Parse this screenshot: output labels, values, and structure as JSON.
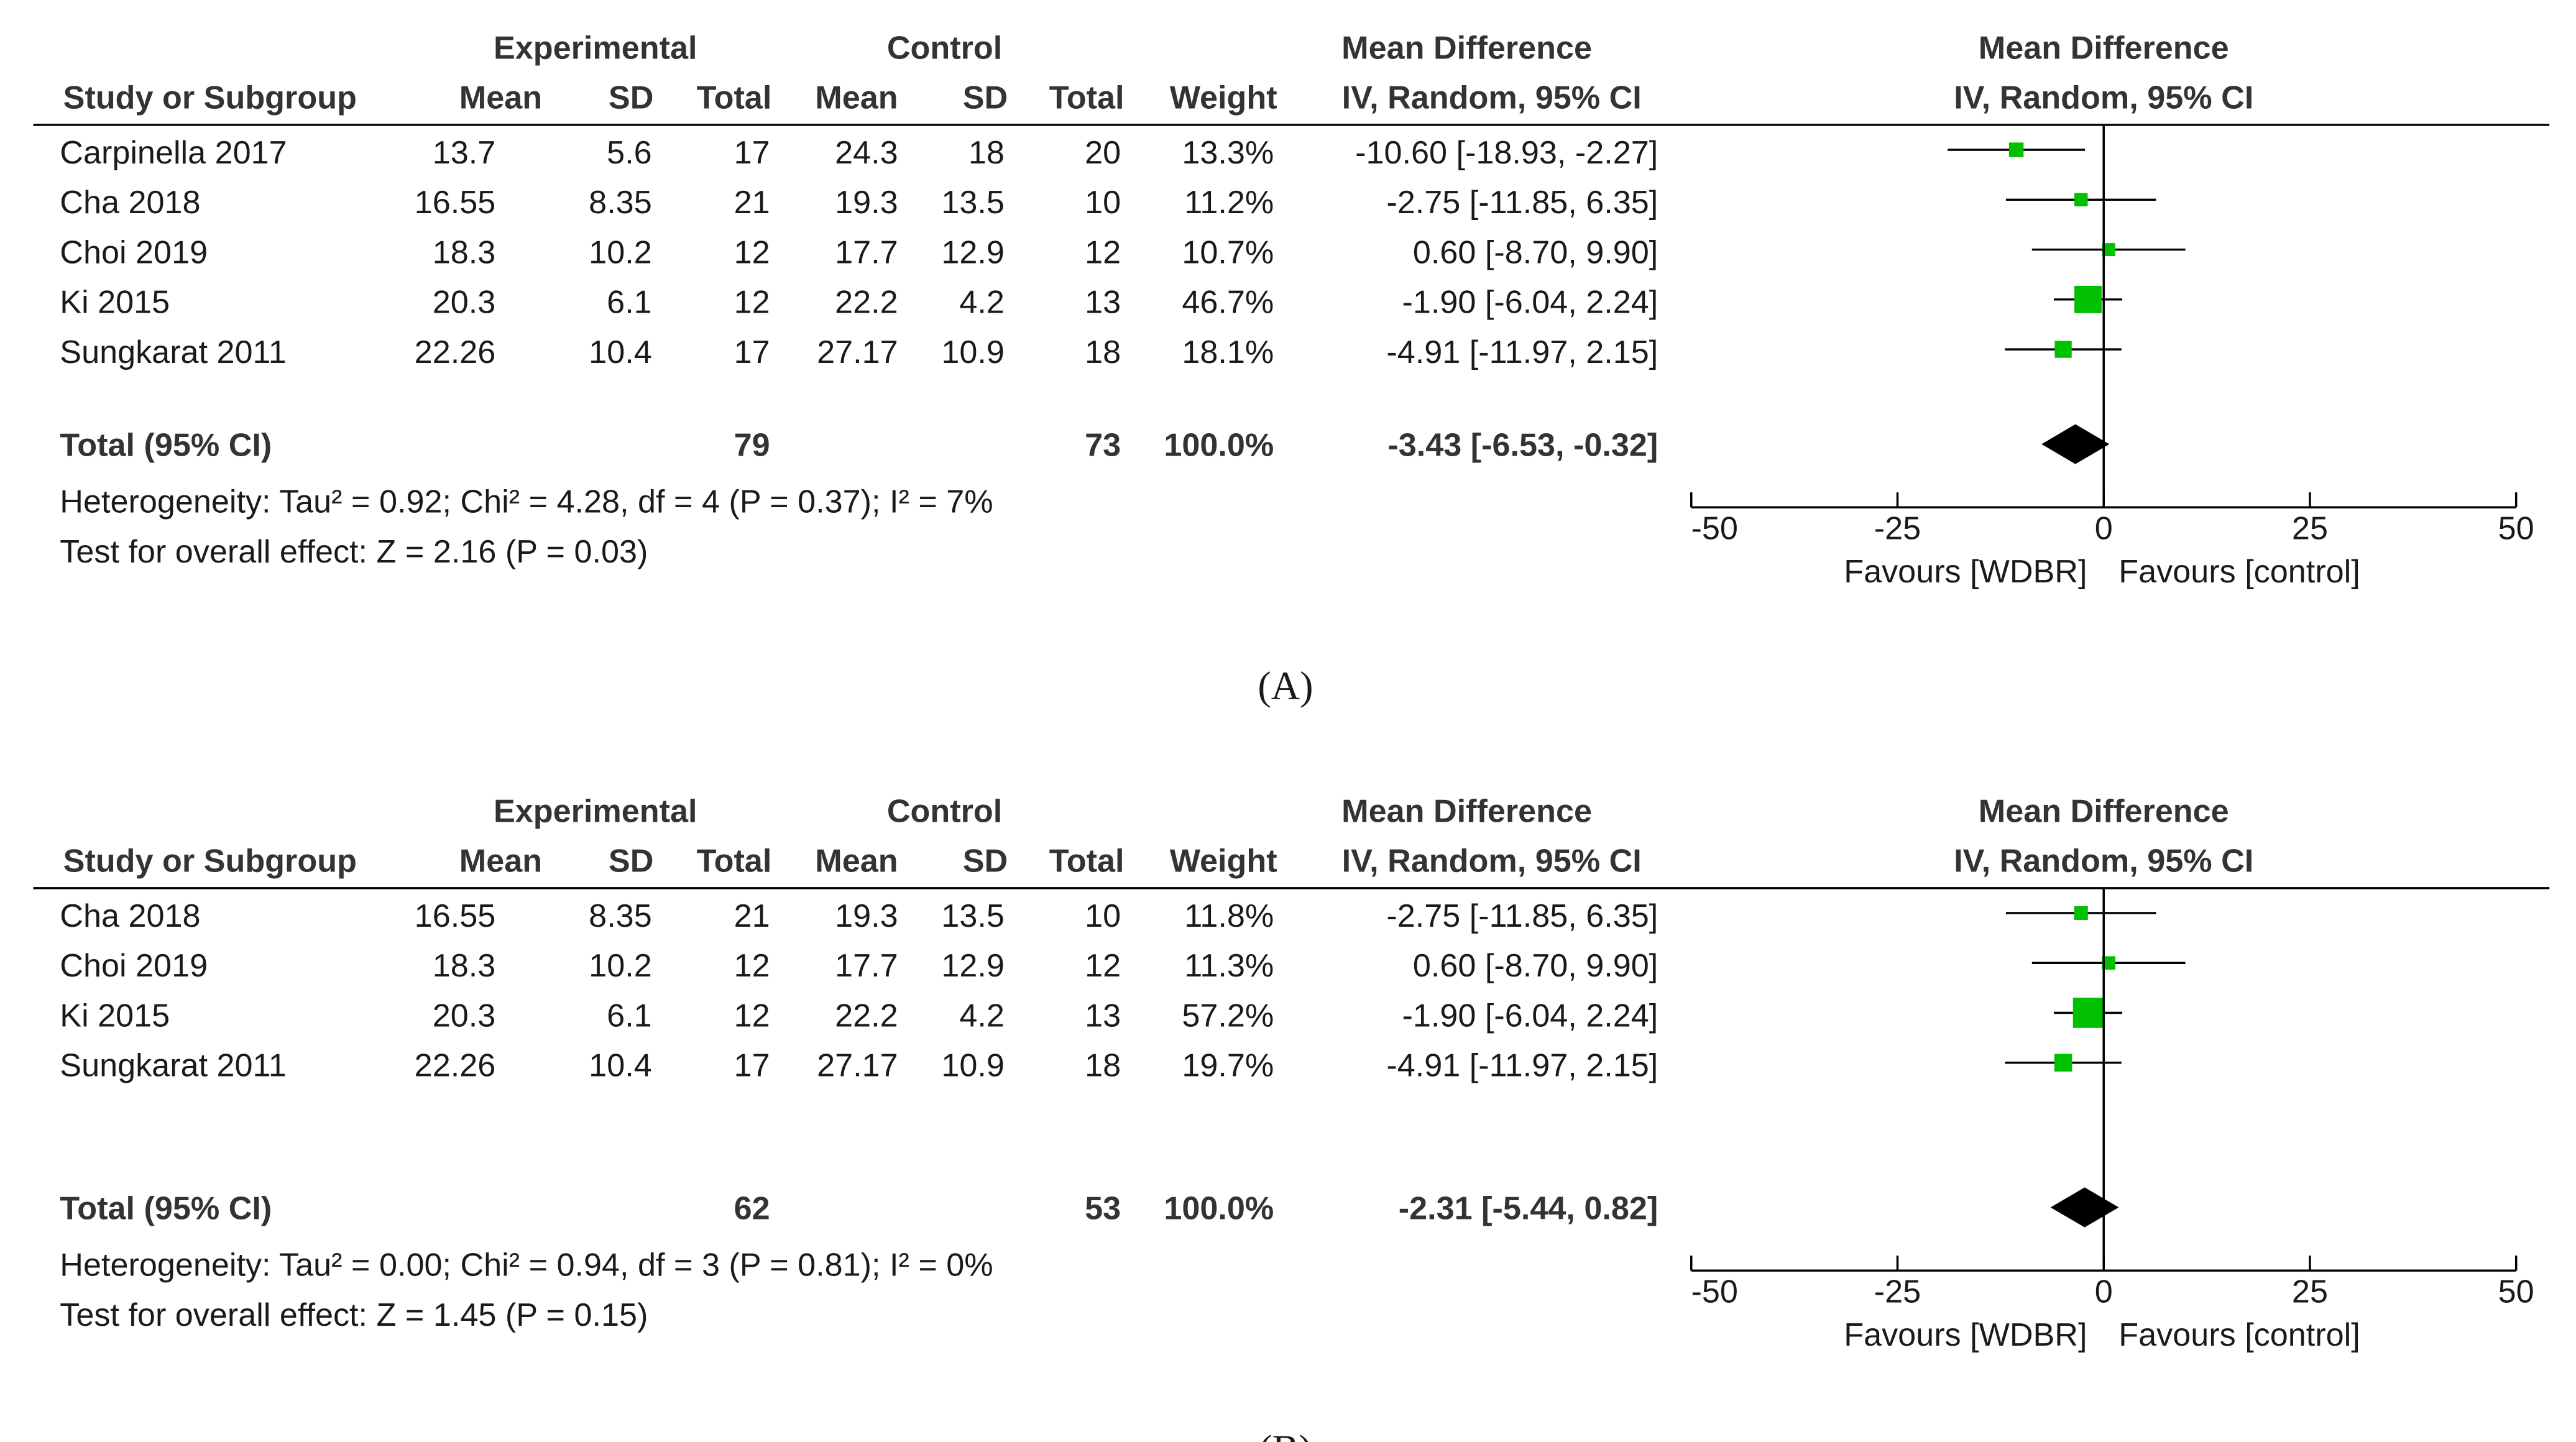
{
  "chart_data": [
    {
      "type": "forest",
      "panel_label": "(A)",
      "group_headers": {
        "experimental": "Experimental",
        "control": "Control",
        "md_table": "Mean Difference",
        "md_plot": "Mean Difference"
      },
      "column_headers": [
        "Study or Subgroup",
        "Mean",
        "SD",
        "Total",
        "Mean",
        "SD",
        "Total",
        "Weight",
        "IV, Random, 95% CI",
        "IV, Random, 95% CI"
      ],
      "studies": [
        {
          "name": "Carpinella 2017",
          "cells": [
            13.7,
            5.6,
            17,
            24.3,
            18,
            20
          ],
          "weight": 13.3,
          "weight_label": "13.3%",
          "md": -10.6,
          "ci": [
            -18.93,
            -2.27
          ],
          "ci_label": "-10.60 [-18.93, -2.27]"
        },
        {
          "name": "Cha 2018",
          "cells": [
            16.55,
            8.35,
            21,
            19.3,
            13.5,
            10
          ],
          "weight": 11.2,
          "weight_label": "11.2%",
          "md": -2.75,
          "ci": [
            -11.85,
            6.35
          ],
          "ci_label": "-2.75 [-11.85, 6.35]"
        },
        {
          "name": "Choi 2019",
          "cells": [
            18.3,
            10.2,
            12,
            17.7,
            12.9,
            12
          ],
          "weight": 10.7,
          "weight_label": "10.7%",
          "md": 0.6,
          "ci": [
            -8.7,
            9.9
          ],
          "ci_label": "0.60 [-8.70, 9.90]"
        },
        {
          "name": "Ki 2015",
          "cells": [
            20.3,
            6.1,
            12,
            22.2,
            4.2,
            13
          ],
          "weight": 46.7,
          "weight_label": "46.7%",
          "md": -1.9,
          "ci": [
            -6.04,
            2.24
          ],
          "ci_label": "-1.90 [-6.04, 2.24]"
        },
        {
          "name": "Sungkarat 2011",
          "cells": [
            22.26,
            10.4,
            17,
            27.17,
            10.9,
            18
          ],
          "weight": 18.1,
          "weight_label": "18.1%",
          "md": -4.91,
          "ci": [
            -11.97,
            2.15
          ],
          "ci_label": "-4.91 [-11.97, 2.15]"
        }
      ],
      "total": {
        "name": "Total (95% CI)",
        "exp_total": 79,
        "ctrl_total": 73,
        "weight_label": "100.0%",
        "md": -3.43,
        "ci": [
          -6.53,
          -0.32
        ],
        "ci_label": "-3.43 [-6.53, -0.32]"
      },
      "heterogeneity": "Heterogeneity: Tau² = 0.92; Chi² = 4.28, df = 4 (P = 0.37); I² = 7%",
      "overall_effect": "Test for overall effect: Z = 2.16 (P = 0.03)",
      "xlim": [
        -50,
        50
      ],
      "xticks": [
        -50,
        -25,
        0,
        25,
        50
      ],
      "x_labels": [
        "Favours [WDBR]",
        "Favours [control]"
      ],
      "color": "#00c000"
    },
    {
      "type": "forest",
      "panel_label": "(B)",
      "group_headers": {
        "experimental": "Experimental",
        "control": "Control",
        "md_table": "Mean Difference",
        "md_plot": "Mean Difference"
      },
      "column_headers": [
        "Study or Subgroup",
        "Mean",
        "SD",
        "Total",
        "Mean",
        "SD",
        "Total",
        "Weight",
        "IV, Random, 95% CI",
        "IV, Random, 95% CI"
      ],
      "studies": [
        {
          "name": "Cha 2018",
          "cells": [
            16.55,
            8.35,
            21,
            19.3,
            13.5,
            10
          ],
          "weight": 11.8,
          "weight_label": "11.8%",
          "md": -2.75,
          "ci": [
            -11.85,
            6.35
          ],
          "ci_label": "-2.75 [-11.85, 6.35]"
        },
        {
          "name": "Choi 2019",
          "cells": [
            18.3,
            10.2,
            12,
            17.7,
            12.9,
            12
          ],
          "weight": 11.3,
          "weight_label": "11.3%",
          "md": 0.6,
          "ci": [
            -8.7,
            9.9
          ],
          "ci_label": "0.60 [-8.70, 9.90]"
        },
        {
          "name": "Ki 2015",
          "cells": [
            20.3,
            6.1,
            12,
            22.2,
            4.2,
            13
          ],
          "weight": 57.2,
          "weight_label": "57.2%",
          "md": -1.9,
          "ci": [
            -6.04,
            2.24
          ],
          "ci_label": "-1.90 [-6.04, 2.24]"
        },
        {
          "name": "Sungkarat 2011",
          "cells": [
            22.26,
            10.4,
            17,
            27.17,
            10.9,
            18
          ],
          "weight": 19.7,
          "weight_label": "19.7%",
          "md": -4.91,
          "ci": [
            -11.97,
            2.15
          ],
          "ci_label": "-4.91 [-11.97, 2.15]"
        }
      ],
      "total": {
        "name": "Total (95% CI)",
        "exp_total": 62,
        "ctrl_total": 53,
        "weight_label": "100.0%",
        "md": -2.31,
        "ci": [
          -5.44,
          0.82
        ],
        "ci_label": "-2.31 [-5.44, 0.82]"
      },
      "heterogeneity": "Heterogeneity: Tau² = 0.00; Chi² = 0.94, df = 3 (P = 0.81); I² = 0%",
      "overall_effect": "Test for overall effect: Z = 1.45 (P = 0.15)",
      "xlim": [
        -50,
        50
      ],
      "xticks": [
        -50,
        -25,
        0,
        25,
        50
      ],
      "x_labels": [
        "Favours [WDBR]",
        "Favours [control]"
      ],
      "color": "#00c000"
    }
  ]
}
